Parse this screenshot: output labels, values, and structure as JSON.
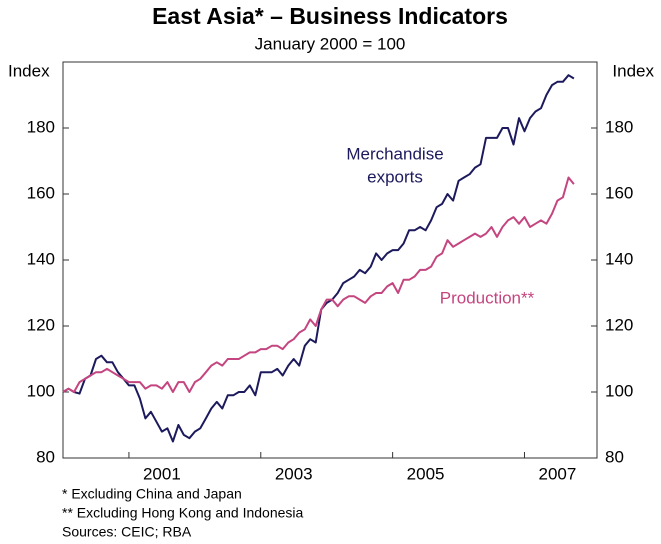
{
  "chart_data": {
    "type": "line",
    "title": "East Asia* – Business Indicators",
    "subtitle": "January 2000 = 100",
    "y_label": "Index",
    "y2_label": "Index",
    "x": [
      2000,
      2000.083,
      2000.167,
      2000.25,
      2000.333,
      2000.417,
      2000.5,
      2000.583,
      2000.667,
      2000.75,
      2000.833,
      2000.917,
      2001,
      2001.083,
      2001.167,
      2001.25,
      2001.333,
      2001.417,
      2001.5,
      2001.583,
      2001.667,
      2001.75,
      2001.833,
      2001.917,
      2002,
      2002.083,
      2002.167,
      2002.25,
      2002.333,
      2002.417,
      2002.5,
      2002.583,
      2002.667,
      2002.75,
      2002.833,
      2002.917,
      2003,
      2003.083,
      2003.167,
      2003.25,
      2003.333,
      2003.417,
      2003.5,
      2003.583,
      2003.667,
      2003.75,
      2003.833,
      2003.917,
      2004,
      2004.083,
      2004.167,
      2004.25,
      2004.333,
      2004.417,
      2004.5,
      2004.583,
      2004.667,
      2004.75,
      2004.833,
      2004.917,
      2005,
      2005.083,
      2005.167,
      2005.25,
      2005.333,
      2005.417,
      2005.5,
      2005.583,
      2005.667,
      2005.75,
      2005.833,
      2005.917,
      2006,
      2006.083,
      2006.167,
      2006.25,
      2006.333,
      2006.417,
      2006.5,
      2006.583,
      2006.667,
      2006.75,
      2006.833,
      2006.917,
      2007,
      2007.083,
      2007.167,
      2007.25,
      2007.333,
      2007.417,
      2007.5,
      2007.583,
      2007.667,
      2007.75
    ],
    "series": [
      {
        "name": "Merchandise exports",
        "color": "#1c1a5c",
        "values": [
          100,
          101,
          100,
          99.5,
          104,
          105,
          110,
          111,
          109,
          109,
          106,
          104,
          102,
          102,
          98,
          92,
          94,
          91,
          88,
          89,
          85,
          90,
          87,
          86,
          88,
          89,
          92,
          95,
          97,
          95,
          99,
          99,
          100,
          100,
          102,
          99,
          106,
          106,
          106,
          107,
          105,
          108,
          110,
          108,
          114,
          116,
          115,
          125,
          127,
          128,
          130,
          133,
          134,
          135,
          137,
          136,
          138,
          142,
          140,
          142,
          143,
          143,
          145,
          149,
          149,
          150,
          149,
          152,
          156,
          157,
          160,
          158,
          164,
          165,
          166,
          168,
          169,
          177,
          177,
          177,
          180,
          180,
          175,
          183,
          179,
          183,
          185,
          186,
          190,
          193,
          194,
          194,
          196,
          195
        ]
      },
      {
        "name": "Production**",
        "color": "#c4457f",
        "values": [
          100,
          101,
          100,
          103,
          104,
          105,
          106,
          106,
          107,
          106,
          105,
          104,
          103,
          103,
          103,
          101,
          102,
          102,
          101,
          103,
          100,
          103,
          103,
          100,
          103,
          104,
          106,
          108,
          109,
          108,
          110,
          110,
          110,
          111,
          112,
          112,
          113,
          113,
          114,
          114,
          113,
          115,
          116,
          118,
          119,
          122,
          120,
          125,
          128,
          128,
          126,
          128,
          129,
          129,
          128,
          127,
          129,
          130,
          130,
          132,
          133,
          130,
          134,
          134,
          135,
          137,
          137,
          138,
          141,
          142,
          146,
          144,
          145,
          146,
          147,
          148,
          147,
          148,
          150,
          147,
          150,
          152,
          153,
          151,
          153,
          150,
          151,
          152,
          151,
          154,
          158,
          159,
          165,
          163
        ]
      }
    ],
    "annotations": [
      {
        "series": 0,
        "lines": [
          "Merchandise",
          "exports"
        ]
      },
      {
        "series": 1,
        "lines": [
          "Production**"
        ]
      }
    ],
    "xlim": [
      2000,
      2008.1
    ],
    "xticks": [
      2001,
      2003,
      2005,
      2007
    ],
    "ylim": [
      80,
      200
    ],
    "yticks": [
      80,
      100,
      120,
      140,
      160,
      180
    ],
    "y2lim": [
      80,
      200
    ],
    "y2ticks": [
      80,
      100,
      120,
      140,
      160,
      180
    ],
    "footnotes": [
      "*   Excluding China and Japan",
      "** Excluding Hong Kong and Indonesia",
      "Sources: CEIC; RBA"
    ]
  }
}
